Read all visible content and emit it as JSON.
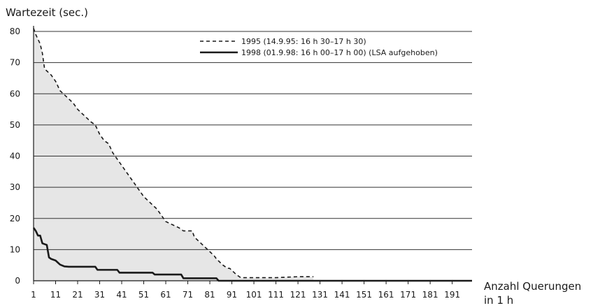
{
  "chart_data": {
    "type": "line",
    "ylabel": "Wartezeit (sec.)",
    "xlabel": [
      "Anzahl Querungen",
      "in 1 h"
    ],
    "xlim": [
      1,
      200
    ],
    "ylim": [
      0,
      80
    ],
    "grid": true,
    "legend_position": "top-right",
    "x_ticks": [
      1,
      11,
      21,
      31,
      41,
      51,
      61,
      71,
      81,
      91,
      101,
      111,
      121,
      131,
      141,
      151,
      161,
      171,
      181,
      191
    ],
    "y_ticks": [
      0,
      10,
      20,
      30,
      40,
      50,
      60,
      70,
      80
    ],
    "fill_color": "#e6e6e6",
    "series": [
      {
        "name": "1995 (14.9.95: 16 h 30–17 h 30)",
        "style": "dashed",
        "color": "#1a1a1a",
        "x": [
          1,
          2,
          4,
          5,
          6,
          9,
          11,
          13,
          16,
          19,
          21,
          24,
          27,
          29,
          31,
          33,
          35,
          37,
          38,
          40,
          43,
          46,
          48,
          50,
          51,
          54,
          57,
          59,
          61,
          64,
          67,
          69,
          71,
          73,
          74,
          77,
          80,
          83,
          84,
          87,
          89,
          90,
          93,
          95,
          97,
          101,
          111,
          121,
          128
        ],
        "y": [
          81,
          79,
          76,
          73,
          68,
          66,
          64,
          61,
          59,
          57,
          55,
          53,
          51,
          50,
          47,
          45,
          44,
          41,
          40,
          38,
          35,
          32,
          30,
          28,
          27,
          25,
          23,
          21,
          19,
          18,
          17,
          16,
          16,
          16,
          14,
          12,
          10,
          8,
          7,
          5,
          4,
          4,
          2,
          1,
          1,
          1,
          1,
          1.3,
          1.3
        ]
      },
      {
        "name": "1998 (01.9.98: 16 h 00–17 h 00) (LSA aufgehoben)",
        "style": "solid",
        "color": "#1a1a1a",
        "x": [
          1,
          2,
          3,
          4,
          5,
          7,
          8,
          9,
          11,
          13,
          15,
          17,
          29,
          30,
          39,
          40,
          55,
          56,
          68,
          69,
          84,
          85,
          200
        ],
        "y": [
          17,
          16,
          14.5,
          14.5,
          12,
          11.5,
          7.5,
          7,
          6.5,
          5.2,
          4.6,
          4.5,
          4.5,
          3.5,
          3.5,
          2.6,
          2.6,
          2,
          2,
          0.8,
          0.8,
          0,
          0
        ]
      }
    ]
  }
}
